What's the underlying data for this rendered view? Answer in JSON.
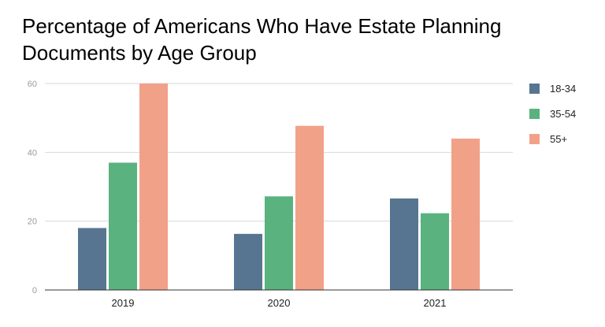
{
  "chart_data": {
    "type": "bar",
    "title_lines": [
      "Percentage of Americans Who Have Estate Planning",
      "Documents by Age Group"
    ],
    "categories": [
      "2019",
      "2020",
      "2021"
    ],
    "series": [
      {
        "name": "18-34",
        "color": "#577590",
        "values": [
          18,
          16.3,
          26.6
        ]
      },
      {
        "name": "35-54",
        "color": "#5ab27f",
        "values": [
          37,
          27.2,
          22.3
        ]
      },
      {
        "name": "55+",
        "color": "#f2a189",
        "values": [
          60,
          47.7,
          44
        ]
      }
    ],
    "xlabel": "",
    "ylabel": "",
    "ylim": [
      0,
      60
    ],
    "yticks": [
      0,
      20,
      40,
      60
    ],
    "grid": true,
    "legend_position": "right"
  }
}
